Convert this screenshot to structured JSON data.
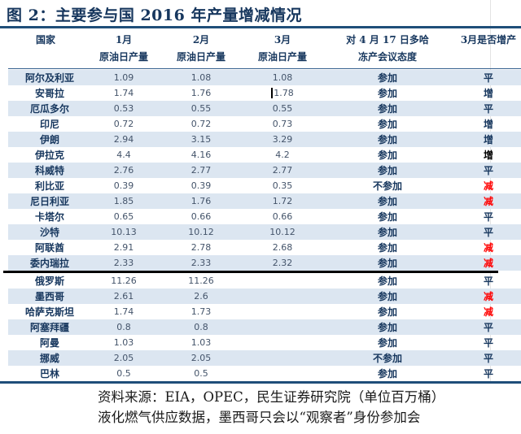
{
  "title": "图 2：主要参与国 2016 年产量增减情况",
  "colors": {
    "title_navy": "#17375e",
    "rule_blue": "#1f4e79",
    "row_stripe": "#dce6f1",
    "decrease_red": "#ff0000",
    "divider_black": "#000000"
  },
  "table": {
    "headers": {
      "country": "国家",
      "jan_line1": "1月",
      "jan_line2": "原油日产量",
      "feb_line1": "2月",
      "feb_line2": "原油日产量",
      "mar_line1": "3月",
      "mar_line2": "原油日产量",
      "attitude_line1": "对 4 月 17 日多哈",
      "attitude_line2": "冻产会议态度",
      "change": "3月是否增产"
    },
    "rows": [
      {
        "country": "阿尔及利亚",
        "jan": "1.09",
        "feb": "1.08",
        "mar": "1.08",
        "attitude": "参加",
        "change": "平",
        "change_style": "flat"
      },
      {
        "country": "安哥拉",
        "jan": "1.74",
        "feb": "1.76",
        "mar": "1.78",
        "attitude": "参加",
        "change": "增",
        "change_style": "up",
        "caret_before_mar": true
      },
      {
        "country": "厄瓜多尔",
        "jan": "0.53",
        "feb": "0.55",
        "mar": "0.55",
        "attitude": "参加",
        "change": "平",
        "change_style": "flat"
      },
      {
        "country": "印尼",
        "jan": "0.72",
        "feb": "0.72",
        "mar": "0.73",
        "attitude": "参加",
        "change": "增",
        "change_style": "up"
      },
      {
        "country": "伊朗",
        "jan": "2.94",
        "feb": "3.15",
        "mar": "3.29",
        "attitude": "参加",
        "change": "增",
        "change_style": "up"
      },
      {
        "country": "伊拉克",
        "jan": "4.4",
        "feb": "4.16",
        "mar": "4.2",
        "attitude": "参加",
        "change": "增",
        "change_style": "up-black"
      },
      {
        "country": "科威特",
        "jan": "2.76",
        "feb": "2.77",
        "mar": "2.77",
        "attitude": "参加",
        "change": "平",
        "change_style": "flat"
      },
      {
        "country": "利比亚",
        "jan": "0.39",
        "feb": "0.39",
        "mar": "0.35",
        "attitude": "不参加",
        "change": "减",
        "change_style": "down"
      },
      {
        "country": "尼日利亚",
        "jan": "1.85",
        "feb": "1.76",
        "mar": "1.72",
        "attitude": "参加",
        "change": "减",
        "change_style": "down"
      },
      {
        "country": "卡塔尔",
        "jan": "0.65",
        "feb": "0.66",
        "mar": "0.66",
        "attitude": "参加",
        "change": "平",
        "change_style": "flat"
      },
      {
        "country": "沙特",
        "jan": "10.13",
        "feb": "10.12",
        "mar": "10.12",
        "attitude": "参加",
        "change": "平",
        "change_style": "flat"
      },
      {
        "country": "阿联酋",
        "jan": "2.91",
        "feb": "2.78",
        "mar": "2.68",
        "attitude": "参加",
        "change": "减",
        "change_style": "down"
      },
      {
        "country": "委内瑞拉",
        "jan": "2.33",
        "feb": "2.33",
        "mar": "2.32",
        "attitude": "参加",
        "change": "减",
        "change_style": "down",
        "divider_after": true
      },
      {
        "country": "俄罗斯",
        "jan": "11.26",
        "feb": "11.26",
        "mar": "",
        "attitude": "参加",
        "change": "平",
        "change_style": "flat"
      },
      {
        "country": "墨西哥",
        "jan": "2.61",
        "feb": "2.6",
        "mar": "",
        "attitude": "参加",
        "change": "减",
        "change_style": "down"
      },
      {
        "country": "哈萨克斯坦",
        "jan": "1.74",
        "feb": "1.73",
        "mar": "",
        "attitude": "参加",
        "change": "减",
        "change_style": "down"
      },
      {
        "country": "阿塞拜疆",
        "jan": "0.8",
        "feb": "0.8",
        "mar": "",
        "attitude": "参加",
        "change": "平",
        "change_style": "flat"
      },
      {
        "country": "阿曼",
        "jan": "1.03",
        "feb": "1.03",
        "mar": "",
        "attitude": "参加",
        "change": "平",
        "change_style": "flat"
      },
      {
        "country": "挪威",
        "jan": "2.05",
        "feb": "2.05",
        "mar": "",
        "attitude": "不参加",
        "change": "平",
        "change_style": "flat"
      },
      {
        "country": "巴林",
        "jan": "0.5",
        "feb": "0.5",
        "mar": "",
        "attitude": "参加",
        "change": "平",
        "change_style": "flat"
      }
    ]
  },
  "footer": {
    "line1": "资料来源：EIA，OPEC，民生证券研究院（单位百万桶）",
    "line2": "液化燃气供应数据，墨西哥只会以“观察者”身份参加会"
  }
}
